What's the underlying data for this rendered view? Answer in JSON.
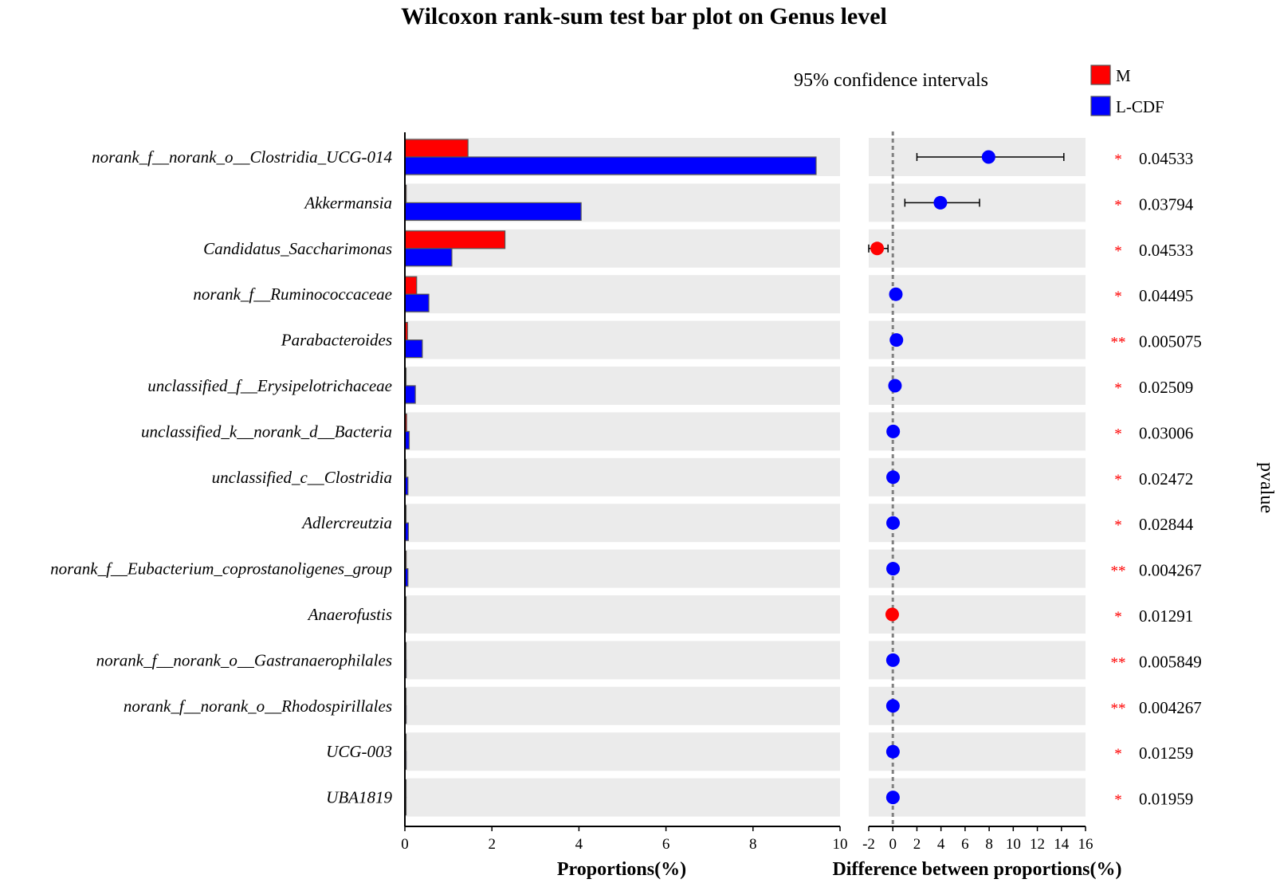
{
  "chart_data": {
    "type": "bar",
    "title": "Wilcoxon rank-sum test bar plot on Genus level",
    "colors": {
      "M": "#ff0000",
      "L-CDF": "#0000ff",
      "panel_bg": "#ebebeb",
      "stars": "#ff0000"
    },
    "legend": {
      "placement": "top-right",
      "entries": [
        "M",
        "L-CDF"
      ]
    },
    "ci_title": "95% confidence intervals",
    "categories": [
      "norank_f__norank_o__Clostridia_UCG-014",
      "Akkermansia",
      "Candidatus_Saccharimonas",
      "norank_f__Ruminococcaceae",
      "Parabacteroides",
      "unclassified_f__Erysipelotrichaceae",
      "unclassified_k__norank_d__Bacteria",
      "unclassified_c__Clostridia",
      "Adlercreutzia",
      "norank_f__Eubacterium_coprostanoligenes_group",
      "Anaerofustis",
      "norank_f__norank_o__Gastranaerophilales",
      "norank_f__norank_o__Rhodospirillales",
      "UCG-003",
      "UBA1819"
    ],
    "series": [
      {
        "name": "M",
        "values": [
          1.45,
          0.03,
          2.3,
          0.27,
          0.06,
          0.02,
          0.04,
          0.02,
          0.02,
          0.03,
          0.02,
          0.02,
          0.01,
          0.02,
          0.01
        ]
      },
      {
        "name": "L-CDF",
        "values": [
          9.45,
          4.05,
          1.08,
          0.55,
          0.4,
          0.24,
          0.1,
          0.07,
          0.08,
          0.07,
          0.01,
          0.03,
          0.03,
          0.03,
          0.02
        ]
      }
    ],
    "xlabel": "Proportions(%)",
    "xlim": [
      0,
      10
    ],
    "xticks": [
      0,
      2,
      4,
      6,
      8,
      10
    ],
    "difference": {
      "xlabel": "Difference between proportions(%)",
      "xlim": [
        -2,
        16
      ],
      "xticks": [
        -2,
        0,
        2,
        4,
        6,
        8,
        10,
        12,
        14,
        16
      ],
      "points": [
        {
          "value": 7.95,
          "lo": 2.0,
          "hi": 14.2,
          "group": "L-CDF"
        },
        {
          "value": 3.95,
          "lo": 1.0,
          "hi": 7.2,
          "group": "L-CDF"
        },
        {
          "value": -1.3,
          "lo": -2.0,
          "hi": -0.4,
          "group": "M"
        },
        {
          "value": 0.25,
          "lo": null,
          "hi": null,
          "group": "L-CDF"
        },
        {
          "value": 0.3,
          "lo": null,
          "hi": null,
          "group": "L-CDF"
        },
        {
          "value": 0.18,
          "lo": null,
          "hi": null,
          "group": "L-CDF"
        },
        {
          "value": 0.03,
          "lo": null,
          "hi": null,
          "group": "L-CDF"
        },
        {
          "value": 0.02,
          "lo": null,
          "hi": null,
          "group": "L-CDF"
        },
        {
          "value": 0.02,
          "lo": null,
          "hi": null,
          "group": "L-CDF"
        },
        {
          "value": 0.02,
          "lo": null,
          "hi": null,
          "group": "L-CDF"
        },
        {
          "value": -0.05,
          "lo": null,
          "hi": null,
          "group": "M"
        },
        {
          "value": 0.01,
          "lo": null,
          "hi": null,
          "group": "L-CDF"
        },
        {
          "value": 0.01,
          "lo": null,
          "hi": null,
          "group": "L-CDF"
        },
        {
          "value": 0.01,
          "lo": null,
          "hi": null,
          "group": "L-CDF"
        },
        {
          "value": 0.01,
          "lo": null,
          "hi": null,
          "group": "L-CDF"
        }
      ]
    },
    "pvalue_label": "pvalue",
    "pvalues": [
      "0.04533",
      "0.03794",
      "0.04533",
      "0.04495",
      "0.005075",
      "0.02509",
      "0.03006",
      "0.02472",
      "0.02844",
      "0.004267",
      "0.01291",
      "0.005849",
      "0.004267",
      "0.01259",
      "0.01959"
    ],
    "significance": [
      "*",
      "*",
      "*",
      "*",
      "**",
      "*",
      "*",
      "*",
      "*",
      "**",
      "*",
      "**",
      "**",
      "*",
      "*"
    ],
    "grid": false
  }
}
